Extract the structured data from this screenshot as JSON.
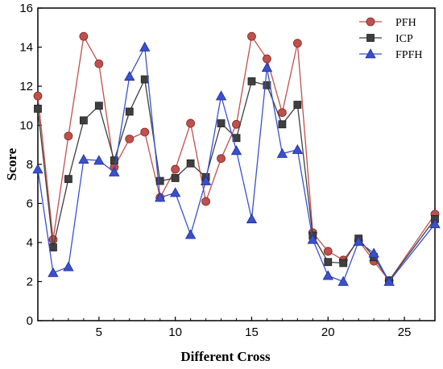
{
  "chart_data": {
    "type": "line",
    "title": "",
    "xlabel": "Different Cross",
    "ylabel": "Score",
    "xlim": [
      1,
      27
    ],
    "ylim": [
      0,
      16
    ],
    "xticks": [
      5,
      10,
      15,
      20,
      25
    ],
    "yticks": [
      0,
      2,
      4,
      6,
      8,
      10,
      12,
      14,
      16
    ],
    "grid": false,
    "legend_position": "top-right",
    "x": [
      1,
      2,
      3,
      4,
      5,
      6,
      7,
      8,
      9,
      10,
      11,
      12,
      13,
      14,
      15,
      16,
      17,
      18,
      19,
      20,
      21,
      22,
      23,
      24,
      27
    ],
    "series": [
      {
        "name": "PFH",
        "color": "#C0504D",
        "marker": "circle",
        "values": [
          11.5,
          4.15,
          9.45,
          14.55,
          13.15,
          7.85,
          9.3,
          9.65,
          6.3,
          7.75,
          10.1,
          6.1,
          8.3,
          10.05,
          14.55,
          13.4,
          10.65,
          14.2,
          4.5,
          3.55,
          3.1,
          4.1,
          3.05,
          2.05,
          5.45
        ]
      },
      {
        "name": "ICP",
        "color": "#3F3F3F",
        "marker": "square",
        "values": [
          10.85,
          3.75,
          7.25,
          10.25,
          11.0,
          8.2,
          10.7,
          12.35,
          7.15,
          7.3,
          8.05,
          7.35,
          10.1,
          9.35,
          12.25,
          12.05,
          10.05,
          11.05,
          4.35,
          3.0,
          2.95,
          4.2,
          3.25,
          2.05,
          5.2
        ]
      },
      {
        "name": "FPFH",
        "color": "#3A50D0",
        "marker": "triangle",
        "values": [
          7.75,
          2.45,
          2.75,
          8.25,
          8.2,
          7.6,
          12.5,
          14.0,
          6.3,
          6.55,
          4.4,
          7.15,
          11.5,
          8.7,
          5.2,
          12.95,
          8.55,
          8.75,
          4.15,
          2.3,
          2.0,
          4.05,
          3.45,
          2.0,
          4.95
        ]
      }
    ]
  }
}
